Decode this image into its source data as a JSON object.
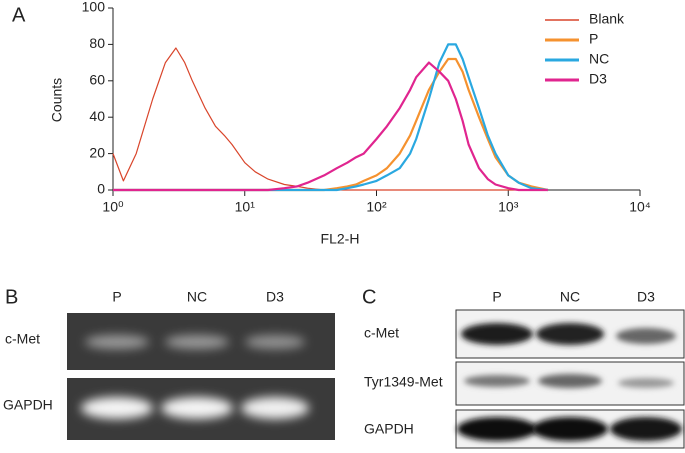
{
  "chart_data": {
    "type": "line",
    "panel_label": "A",
    "xlabel": "FL2-H",
    "ylabel": "Counts",
    "x": [
      1,
      1.2,
      1.5,
      2,
      2.5,
      3,
      3.5,
      4,
      5,
      6,
      7,
      8,
      10,
      12,
      15,
      20,
      25,
      30,
      40,
      50,
      60,
      70,
      80,
      100,
      120,
      150,
      180,
      200,
      250,
      300,
      350,
      400,
      450,
      500,
      600,
      700,
      800,
      1000,
      1200,
      1500,
      2000
    ],
    "series": [
      {
        "name": "Blank",
        "color": "#d9452b",
        "values": [
          20,
          5,
          20,
          50,
          70,
          78,
          70,
          60,
          45,
          35,
          30,
          25,
          15,
          10,
          6,
          3,
          2,
          1,
          0,
          0,
          0,
          0,
          0,
          0,
          0,
          0,
          0,
          0,
          0,
          0,
          0,
          0,
          0,
          0,
          0,
          0,
          0,
          0,
          0,
          0,
          0
        ]
      },
      {
        "name": "P",
        "color": "#f5922f",
        "values": [
          0,
          0,
          0,
          0,
          0,
          0,
          0,
          0,
          0,
          0,
          0,
          0,
          0,
          0,
          0,
          0,
          0,
          0,
          0,
          1,
          2,
          3,
          5,
          8,
          12,
          20,
          30,
          38,
          55,
          65,
          72,
          72,
          65,
          55,
          40,
          28,
          18,
          8,
          4,
          2,
          0
        ]
      },
      {
        "name": "NC",
        "color": "#2aa8e0",
        "values": [
          0,
          0,
          0,
          0,
          0,
          0,
          0,
          0,
          0,
          0,
          0,
          0,
          0,
          0,
          0,
          0,
          0,
          0,
          0,
          0,
          1,
          2,
          3,
          5,
          8,
          12,
          20,
          28,
          50,
          70,
          80,
          80,
          72,
          62,
          45,
          30,
          20,
          8,
          4,
          1,
          0
        ]
      },
      {
        "name": "D3",
        "color": "#e0258f",
        "values": [
          0,
          0,
          0,
          0,
          0,
          0,
          0,
          0,
          0,
          0,
          0,
          0,
          0,
          0,
          0,
          1,
          2,
          4,
          8,
          12,
          15,
          18,
          20,
          28,
          35,
          45,
          55,
          62,
          70,
          65,
          60,
          50,
          38,
          25,
          12,
          6,
          3,
          1,
          0,
          0,
          0
        ]
      }
    ],
    "xscale": "log",
    "xlim": [
      1,
      10000
    ],
    "xticks": [
      {
        "value": 1,
        "label": "10⁰"
      },
      {
        "value": 10,
        "label": "10¹"
      },
      {
        "value": 100,
        "label": "10²"
      },
      {
        "value": 1000,
        "label": "10³"
      },
      {
        "value": 10000,
        "label": "10⁴"
      }
    ],
    "ylim": [
      0,
      100
    ],
    "yticks": [
      0,
      20,
      40,
      60,
      80,
      100
    ],
    "legend": "upper right",
    "grid": false
  },
  "panel_b": {
    "label": "B",
    "columns": [
      "P",
      "NC",
      "D3"
    ],
    "rows": [
      "c-Met",
      "GAPDH"
    ]
  },
  "panel_c": {
    "label": "C",
    "columns": [
      "P",
      "NC",
      "D3"
    ],
    "rows": [
      "c-Met",
      "Tyr1349-Met",
      "GAPDH"
    ]
  }
}
